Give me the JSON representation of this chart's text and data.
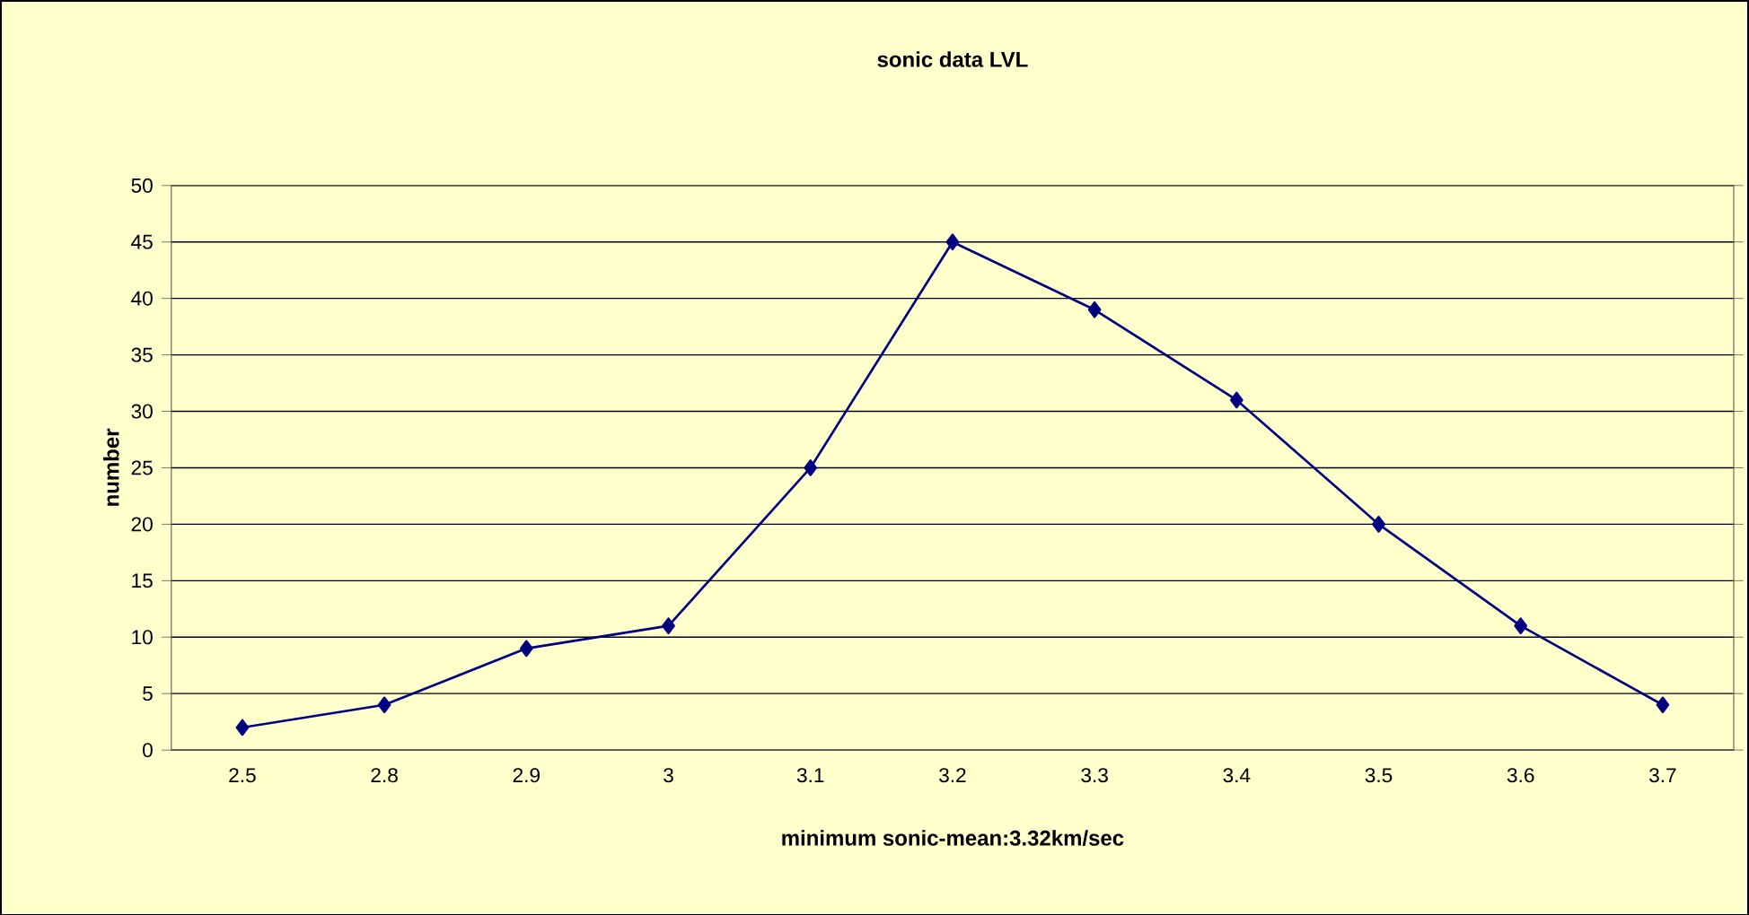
{
  "chart_data": {
    "type": "line",
    "title": "sonic data LVL",
    "xlabel": "minimum sonic-mean:3.32km/sec",
    "ylabel": "number",
    "categories": [
      "2.5",
      "2.8",
      "2.9",
      "3",
      "3.1",
      "3.2",
      "3.3",
      "3.4",
      "3.5",
      "3.6",
      "3.7"
    ],
    "series": [
      {
        "color": "#000080",
        "values": [
          2,
          4,
          9,
          11,
          25,
          45,
          39,
          31,
          20,
          11,
          4
        ]
      }
    ],
    "ylim": [
      0,
      50
    ],
    "yticks": [
      0,
      5,
      10,
      15,
      20,
      25,
      30,
      35,
      40,
      45,
      50
    ],
    "grid": "y",
    "marker": "diamond",
    "line_style": "solid"
  }
}
